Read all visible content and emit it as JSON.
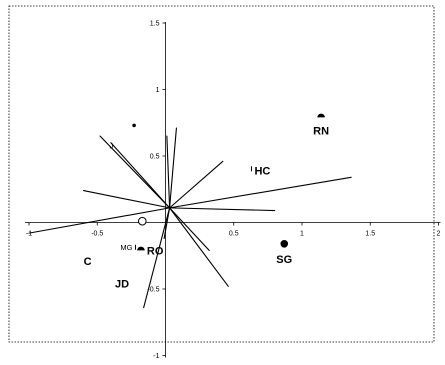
{
  "chart_data": {
    "type": "scatter",
    "title": "",
    "xlabel": "",
    "ylabel": "",
    "xlim": [
      -1,
      2
    ],
    "ylim": [
      -1,
      1.5
    ],
    "x_ticks": [
      -1,
      -0.5,
      0.5,
      1,
      1.5,
      2
    ],
    "x_tick_labels": [
      "-1",
      "-0.5",
      "0.5",
      "1",
      "1.5",
      "2"
    ],
    "y_ticks": [
      -1,
      -0.5,
      0.5,
      1,
      1.5
    ],
    "y_tick_labels": [
      "-1",
      "-0.5",
      "0.5",
      "1",
      "1.5"
    ],
    "points": [
      {
        "label": "RN",
        "x": 1.14,
        "y": 0.79,
        "marker": "half",
        "size": "large",
        "label_style": "bold"
      },
      {
        "label": "HC",
        "x": 0.63,
        "y": 0.4,
        "marker": "tick",
        "size": "small",
        "label_style": "bold"
      },
      {
        "label": "SG",
        "x": 0.87,
        "y": -0.16,
        "marker": "filled",
        "size": "large",
        "label_style": "bold"
      },
      {
        "label": "RO",
        "x": -0.18,
        "y": -0.21,
        "marker": "half",
        "size": "large",
        "label_style": "bold"
      },
      {
        "label": "MG",
        "x": -0.22,
        "y": -0.19,
        "marker": "tick",
        "size": "small",
        "label_style": "small"
      },
      {
        "label": "C",
        "x": -0.6,
        "y": -0.29,
        "marker": "none",
        "size": "none",
        "label_style": "bold"
      },
      {
        "label": "JD",
        "x": -0.37,
        "y": -0.46,
        "marker": "none",
        "size": "none",
        "label_style": "bold"
      },
      {
        "label": "J",
        "x": -0.41,
        "y": 0.58,
        "marker": "none",
        "size": "none",
        "label_style": "small"
      },
      {
        "label": "",
        "x": -0.23,
        "y": 0.73,
        "marker": "filled",
        "size": "small",
        "label_style": "small"
      },
      {
        "label": "",
        "x": -0.17,
        "y": 0.01,
        "marker": "open",
        "size": "large",
        "label_style": "small"
      }
    ],
    "vectors": [
      {
        "x": 0.08,
        "y": 0.71
      },
      {
        "x": 0.01,
        "y": 0.65
      },
      {
        "x": 0.42,
        "y": 0.46
      },
      {
        "x": 1.36,
        "y": 0.34
      },
      {
        "x": 0.8,
        "y": 0.09
      },
      {
        "x": 0.46,
        "y": -0.48
      },
      {
        "x": 0.32,
        "y": -0.21
      },
      {
        "x": -0.01,
        "y": -0.12
      },
      {
        "x": -0.16,
        "y": -0.64
      },
      {
        "x": -1.0,
        "y": -0.08
      },
      {
        "x": -0.6,
        "y": 0.24
      },
      {
        "x": -0.48,
        "y": 0.65
      },
      {
        "x": -0.4,
        "y": 0.6
      }
    ],
    "vector_origin": {
      "x": 0.03,
      "y": 0.11
    }
  }
}
